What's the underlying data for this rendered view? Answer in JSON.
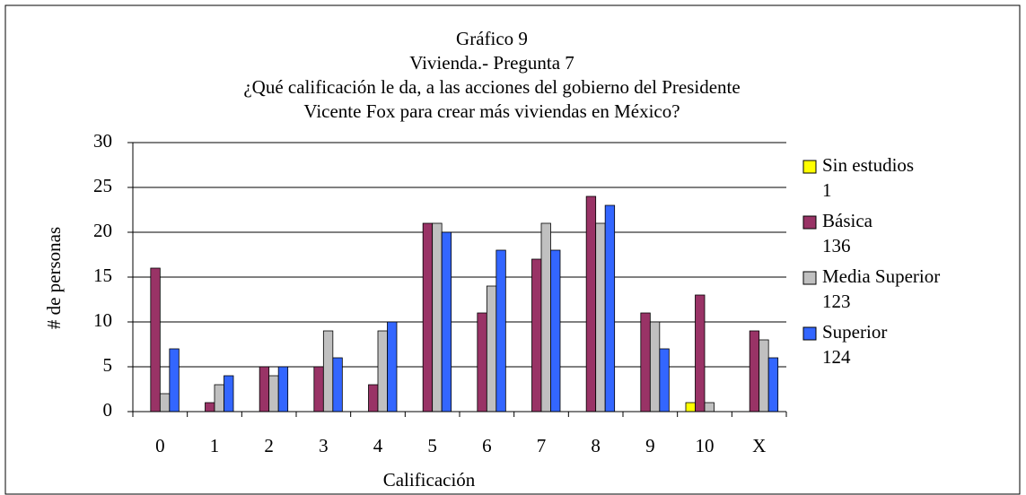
{
  "chart_data": {
    "type": "bar",
    "title": [
      "Gráfico 9",
      "Vivienda.- Pregunta 7",
      "¿Qué calificación le da, a las acciones del gobierno del Presidente",
      "Vicente Fox para crear más viviendas en México?"
    ],
    "xlabel": "Calificación",
    "ylabel": "# de personas",
    "categories": [
      "0",
      "1",
      "2",
      "3",
      "4",
      "5",
      "6",
      "7",
      "8",
      "9",
      "10",
      "X"
    ],
    "series": [
      {
        "name": "Sin estudios",
        "total": 1,
        "color": "#ffff00",
        "values": [
          0,
          0,
          0,
          0,
          0,
          0,
          0,
          0,
          0,
          0,
          1,
          0
        ]
      },
      {
        "name": "Básica",
        "total": 136,
        "color": "#993366",
        "values": [
          16,
          1,
          5,
          5,
          3,
          21,
          11,
          17,
          24,
          11,
          13,
          9
        ]
      },
      {
        "name": "Media Superior",
        "total": 123,
        "color": "#c0c0c0",
        "values": [
          2,
          3,
          4,
          9,
          9,
          21,
          14,
          21,
          21,
          10,
          1,
          8
        ]
      },
      {
        "name": "Superior",
        "total": 124,
        "color": "#3366ff",
        "values": [
          7,
          4,
          5,
          6,
          10,
          20,
          18,
          18,
          23,
          7,
          0,
          6
        ]
      }
    ],
    "ylim": [
      0,
      30
    ],
    "yticks": [
      0,
      5,
      10,
      15,
      20,
      25,
      30
    ],
    "grid": true,
    "legend": "right"
  }
}
